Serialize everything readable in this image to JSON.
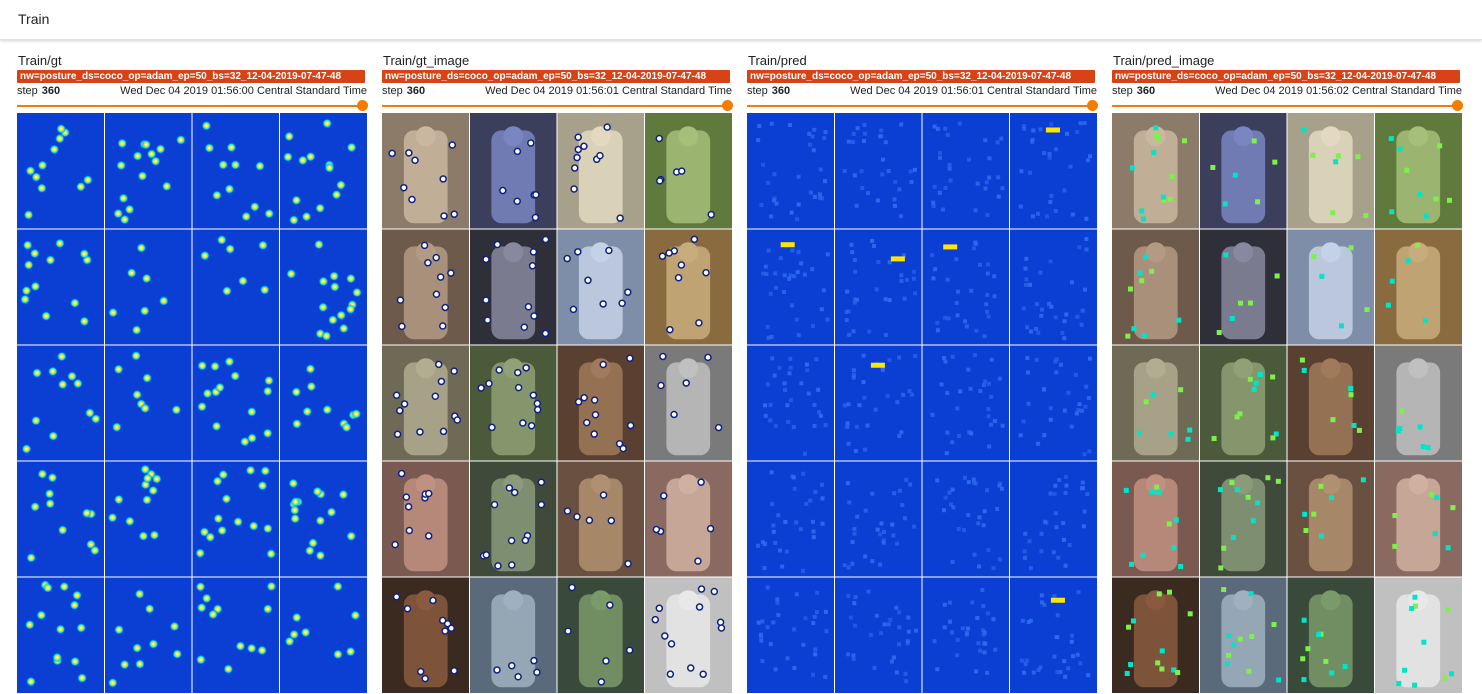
{
  "section": {
    "title": "Train"
  },
  "cards": [
    {
      "title": "Train/gt",
      "run": "nw=posture_ds=coco_op=adam_ep=50_bs=32_12-04-2019-07-47-48",
      "step_label": "step",
      "step_value": "360",
      "timestamp": "Wed Dec 04 2019 01:56:00 Central Standard Time",
      "kind": "heatmap"
    },
    {
      "title": "Train/gt_image",
      "run": "nw=posture_ds=coco_op=adam_ep=50_bs=32_12-04-2019-07-47-48",
      "step_label": "step",
      "step_value": "360",
      "timestamp": "Wed Dec 04 2019 01:56:01 Central Standard Time",
      "kind": "photo"
    },
    {
      "title": "Train/pred",
      "run": "nw=posture_ds=coco_op=adam_ep=50_bs=32_12-04-2019-07-47-48",
      "step_label": "step",
      "step_value": "360",
      "timestamp": "Wed Dec 04 2019 01:56:01 Central Standard Time",
      "kind": "pred"
    },
    {
      "title": "Train/pred_image",
      "run": "nw=posture_ds=coco_op=adam_ep=50_bs=32_12-04-2019-07-47-48",
      "step_label": "step",
      "step_value": "360",
      "timestamp": "Wed Dec 04 2019 01:56:02 Central Standard Time",
      "kind": "photo_pred"
    }
  ],
  "slider": {
    "value": 1.0
  },
  "colors": {
    "run_label_bg": "#d84315",
    "slider_accent": "#f57c00",
    "heatmap_bg": "#0b3fd4",
    "grid_line": "#ffffff"
  }
}
